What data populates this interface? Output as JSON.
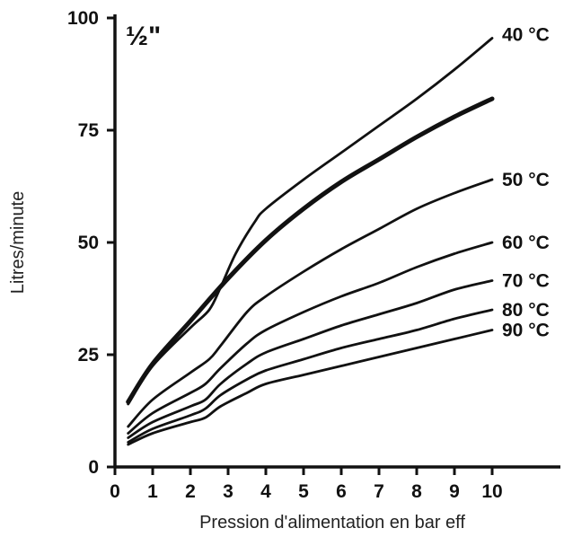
{
  "chart_data": {
    "type": "line",
    "title": "½\"",
    "xlabel": "Pression d'alimentation en bar eff",
    "ylabel": "Litres/minute",
    "xlim": [
      0,
      10
    ],
    "ylim": [
      0,
      100
    ],
    "x_ticks": [
      "0",
      "1",
      "2",
      "3",
      "4",
      "5",
      "6",
      "7",
      "8",
      "9",
      "10"
    ],
    "y_ticks": [
      "0",
      "25",
      "50",
      "75",
      "100"
    ],
    "grid": false,
    "legend": "none",
    "series": [
      {
        "name": "40 °C",
        "line": "normal",
        "points": [
          [
            0.35,
            14
          ],
          [
            1,
            22.5
          ],
          [
            2,
            31
          ],
          [
            2.5,
            35
          ],
          [
            2.8,
            40
          ],
          [
            3.2,
            47.5
          ],
          [
            3.7,
            54.5
          ],
          [
            4,
            57.5
          ],
          [
            5,
            64
          ],
          [
            6,
            70
          ],
          [
            7,
            76
          ],
          [
            8,
            82
          ],
          [
            9,
            88.5
          ],
          [
            10,
            95.5
          ]
        ]
      },
      {
        "name": "",
        "line": "bold",
        "points": [
          [
            0.35,
            14.5
          ],
          [
            1,
            23
          ],
          [
            2,
            32.5
          ],
          [
            3,
            42
          ],
          [
            4,
            50.5
          ],
          [
            5,
            57.5
          ],
          [
            6,
            63.5
          ],
          [
            7,
            68.5
          ],
          [
            8,
            73.5
          ],
          [
            9,
            78
          ],
          [
            10,
            82
          ]
        ]
      },
      {
        "name": "50 °C",
        "line": "normal",
        "points": [
          [
            0.35,
            9
          ],
          [
            1,
            15
          ],
          [
            2,
            21
          ],
          [
            2.5,
            24
          ],
          [
            2.8,
            27
          ],
          [
            3.5,
            34.5
          ],
          [
            4,
            38
          ],
          [
            5,
            43.5
          ],
          [
            6,
            48.5
          ],
          [
            7,
            53
          ],
          [
            8,
            57.5
          ],
          [
            9,
            61
          ],
          [
            10,
            64
          ]
        ]
      },
      {
        "name": "60 °C",
        "line": "normal",
        "points": [
          [
            0.35,
            7.5
          ],
          [
            1,
            12
          ],
          [
            2,
            16.5
          ],
          [
            2.4,
            18.5
          ],
          [
            2.8,
            22
          ],
          [
            3.5,
            27.5
          ],
          [
            4,
            30.5
          ],
          [
            5,
            34.5
          ],
          [
            6,
            38
          ],
          [
            7,
            41
          ],
          [
            8,
            44.5
          ],
          [
            9,
            47.5
          ],
          [
            10,
            50
          ]
        ]
      },
      {
        "name": "70 °C",
        "line": "normal",
        "points": [
          [
            0.35,
            6.5
          ],
          [
            1,
            10
          ],
          [
            2,
            13.5
          ],
          [
            2.4,
            15
          ],
          [
            2.8,
            18.5
          ],
          [
            3.5,
            23
          ],
          [
            4,
            25.5
          ],
          [
            5,
            28.5
          ],
          [
            6,
            31.5
          ],
          [
            7,
            34
          ],
          [
            8,
            36.5
          ],
          [
            9,
            39.5
          ],
          [
            10,
            41.5
          ]
        ]
      },
      {
        "name": "80 °C",
        "line": "normal",
        "points": [
          [
            0.35,
            5.5
          ],
          [
            1,
            8.5
          ],
          [
            2,
            11.5
          ],
          [
            2.4,
            13
          ],
          [
            2.8,
            16
          ],
          [
            3.5,
            19.5
          ],
          [
            4,
            21.5
          ],
          [
            5,
            24
          ],
          [
            6,
            26.5
          ],
          [
            7,
            28.5
          ],
          [
            8,
            30.5
          ],
          [
            9,
            33
          ],
          [
            10,
            35
          ]
        ]
      },
      {
        "name": "90 °C",
        "line": "normal",
        "points": [
          [
            0.35,
            5
          ],
          [
            1,
            7.5
          ],
          [
            2,
            10
          ],
          [
            2.4,
            11
          ],
          [
            2.8,
            13.5
          ],
          [
            3.5,
            16.5
          ],
          [
            4,
            18.5
          ],
          [
            5,
            20.5
          ],
          [
            6,
            22.5
          ],
          [
            7,
            24.5
          ],
          [
            8,
            26.5
          ],
          [
            9,
            28.5
          ],
          [
            10,
            30.5
          ]
        ]
      }
    ]
  }
}
